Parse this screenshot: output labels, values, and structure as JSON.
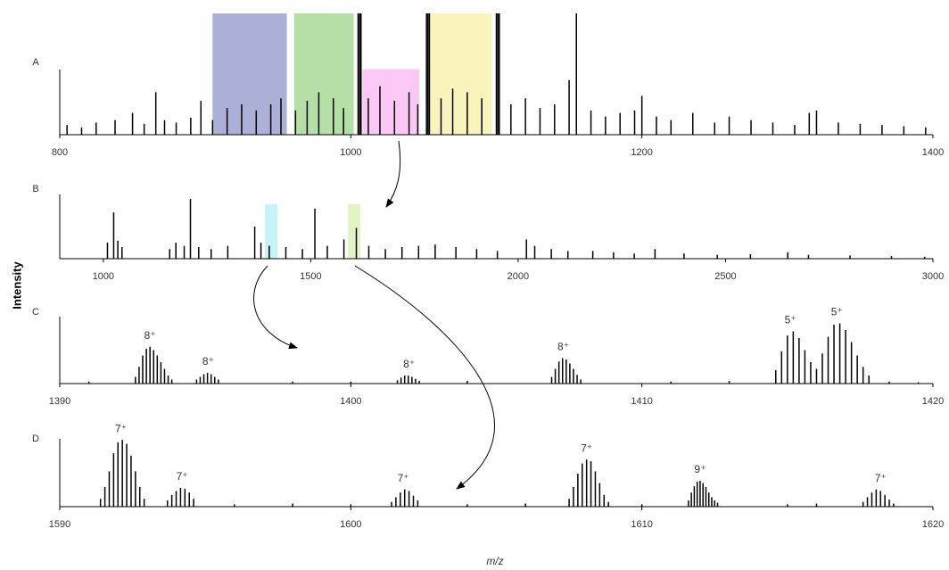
{
  "figure": {
    "ylabel": "Intensity",
    "xlabel": "m/z"
  },
  "chart_data": [
    {
      "type": "spectrum",
      "label": "A",
      "color": "#000000",
      "xlim": [
        800,
        1400
      ],
      "xticks": [
        800,
        1000,
        1200,
        1400
      ],
      "ylim": [
        0,
        100
      ],
      "x": [
        805,
        815,
        825,
        838,
        850,
        858,
        866,
        872,
        880,
        890,
        897,
        905,
        915,
        925,
        935,
        945,
        952,
        962,
        970,
        978,
        988,
        995,
        1005,
        1006,
        1007,
        1012,
        1020,
        1030,
        1040,
        1046,
        1052,
        1053,
        1054,
        1062,
        1070,
        1080,
        1090,
        1100,
        1101,
        1102,
        1110,
        1120,
        1130,
        1140,
        1150,
        1155,
        1165,
        1175,
        1185,
        1195,
        1200,
        1210,
        1220,
        1235,
        1250,
        1260,
        1275,
        1290,
        1305,
        1315,
        1320,
        1335,
        1350,
        1365,
        1380,
        1395
      ],
      "values": [
        8,
        6,
        10,
        12,
        18,
        9,
        35,
        12,
        10,
        14,
        28,
        12,
        22,
        25,
        20,
        25,
        30,
        20,
        28,
        35,
        30,
        22,
        100,
        100,
        100,
        30,
        40,
        28,
        35,
        25,
        100,
        100,
        100,
        30,
        38,
        35,
        30,
        100,
        100,
        100,
        25,
        30,
        22,
        25,
        45,
        100,
        20,
        15,
        18,
        20,
        32,
        15,
        12,
        18,
        10,
        15,
        12,
        10,
        8,
        18,
        20,
        10,
        9,
        8,
        7,
        6
      ],
      "highlights": [
        {
          "range": [
            905,
            956
          ],
          "top": 100,
          "color": "#aab0d6"
        },
        {
          "range": [
            961,
            1002
          ],
          "top": 100,
          "color": "#b4e0a8"
        },
        {
          "range": [
            1008,
            1047
          ],
          "top": 54,
          "color": "#fbc8f6"
        },
        {
          "range": [
            1054,
            1097
          ],
          "top": 100,
          "color": "#f8f4bc"
        }
      ],
      "annotations": []
    },
    {
      "type": "spectrum",
      "label": "B",
      "color": "#000000",
      "xlim": [
        895,
        3000
      ],
      "xticks": [
        1000,
        1500,
        2000,
        2500,
        3000
      ],
      "ylim": [
        0,
        100
      ],
      "x": [
        1010,
        1025,
        1035,
        1045,
        1160,
        1175,
        1195,
        1210,
        1230,
        1260,
        1300,
        1365,
        1380,
        1400,
        1440,
        1480,
        1510,
        1540,
        1580,
        1610,
        1640,
        1680,
        1720,
        1760,
        1800,
        1850,
        1900,
        1950,
        2020,
        2040,
        2080,
        2120,
        2180,
        2230,
        2280,
        2330,
        2400,
        2480,
        2560,
        2650,
        2700,
        2800,
        2900,
        2980
      ],
      "values": [
        25,
        72,
        28,
        18,
        15,
        25,
        20,
        93,
        18,
        15,
        20,
        50,
        25,
        20,
        18,
        15,
        78,
        20,
        30,
        48,
        20,
        15,
        18,
        20,
        22,
        18,
        15,
        12,
        30,
        20,
        15,
        12,
        12,
        10,
        8,
        15,
        8,
        6,
        7,
        10,
        6,
        5,
        4,
        3
      ],
      "highlights": [
        {
          "range": [
            1390,
            1420
          ],
          "top": 85,
          "color": "#c4f4f8"
        },
        {
          "range": [
            1590,
            1620
          ],
          "top": 85,
          "color": "#e2f4c4"
        }
      ],
      "annotations": []
    },
    {
      "type": "spectrum",
      "label": "C",
      "color": "#000000",
      "xlim": [
        1390,
        1420
      ],
      "xticks": [
        1390,
        1400,
        1410,
        1420
      ],
      "ylim": [
        0,
        100
      ],
      "x": [
        1391,
        1392.6,
        1392.725,
        1392.85,
        1392.975,
        1393.1,
        1393.225,
        1393.35,
        1393.475,
        1393.6,
        1393.725,
        1393.85,
        1394.7,
        1394.825,
        1394.95,
        1395.075,
        1395.2,
        1395.325,
        1395.45,
        1398,
        1400,
        1401.6,
        1401.725,
        1401.85,
        1401.975,
        1402.1,
        1402.225,
        1402.35,
        1404,
        1406.9,
        1407.025,
        1407.15,
        1407.275,
        1407.4,
        1407.525,
        1407.65,
        1407.775,
        1407.9,
        1411,
        1413,
        1414.6,
        1414.8,
        1415.0,
        1415.2,
        1415.4,
        1415.6,
        1415.8,
        1416.0,
        1416.2,
        1416.4,
        1416.6,
        1416.8,
        1417.0,
        1417.2,
        1417.4,
        1417.6,
        1417.8,
        1418.5,
        1419.5
      ],
      "values": [
        3,
        10,
        25,
        42,
        52,
        55,
        50,
        42,
        32,
        22,
        12,
        6,
        6,
        10,
        14,
        16,
        14,
        10,
        6,
        3,
        3,
        5,
        9,
        12,
        12,
        10,
        7,
        4,
        4,
        10,
        22,
        33,
        38,
        36,
        30,
        22,
        13,
        6,
        3,
        4,
        20,
        48,
        72,
        78,
        68,
        50,
        32,
        22,
        45,
        70,
        88,
        90,
        80,
        62,
        42,
        25,
        12,
        3,
        2
      ],
      "highlights": [],
      "annotations": [
        {
          "x": 1393.1,
          "y": 55,
          "label": "8⁺"
        },
        {
          "x": 1395.1,
          "y": 16,
          "label": "8⁺"
        },
        {
          "x": 1402.0,
          "y": 12,
          "label": "8⁺"
        },
        {
          "x": 1407.3,
          "y": 38,
          "label": "8⁺"
        },
        {
          "x": 1415.1,
          "y": 78,
          "label": "5⁺"
        },
        {
          "x": 1416.7,
          "y": 90,
          "label": "5⁺"
        }
      ]
    },
    {
      "type": "spectrum",
      "label": "D",
      "color": "#000000",
      "xlim": [
        1590,
        1620
      ],
      "xticks": [
        1590,
        1600,
        1610,
        1620
      ],
      "ylim": [
        0,
        100
      ],
      "x": [
        1591.4,
        1591.55,
        1591.7,
        1591.85,
        1592.0,
        1592.15,
        1592.3,
        1592.45,
        1592.6,
        1592.75,
        1592.9,
        1593.7,
        1593.85,
        1594.0,
        1594.15,
        1594.3,
        1594.45,
        1594.6,
        1596,
        1598,
        1600,
        1601.4,
        1601.55,
        1601.7,
        1601.85,
        1602.0,
        1602.15,
        1602.3,
        1604,
        1606,
        1607.5,
        1607.65,
        1607.8,
        1607.95,
        1608.1,
        1608.25,
        1608.4,
        1608.55,
        1608.7,
        1608.85,
        1610,
        1611.6,
        1611.7,
        1611.8,
        1611.9,
        1612.0,
        1612.1,
        1612.2,
        1612.3,
        1612.4,
        1612.5,
        1612.6,
        1615,
        1616,
        1617.6,
        1617.75,
        1617.9,
        1618.05,
        1618.2,
        1618.35,
        1618.5,
        1618.65
      ],
      "values": [
        10,
        25,
        45,
        68,
        82,
        85,
        80,
        65,
        45,
        25,
        10,
        8,
        15,
        20,
        24,
        23,
        18,
        10,
        3,
        4,
        3,
        6,
        12,
        18,
        22,
        20,
        14,
        8,
        3,
        4,
        10,
        25,
        42,
        55,
        60,
        58,
        45,
        30,
        15,
        6,
        3,
        8,
        18,
        26,
        32,
        33,
        30,
        25,
        18,
        12,
        8,
        5,
        3,
        4,
        6,
        12,
        18,
        22,
        20,
        15,
        9,
        4
      ],
      "highlights": [],
      "annotations": [
        {
          "x": 1592.1,
          "y": 85,
          "label": "7⁺"
        },
        {
          "x": 1594.2,
          "y": 24,
          "label": "7⁺"
        },
        {
          "x": 1601.8,
          "y": 22,
          "label": "7⁺"
        },
        {
          "x": 1608.1,
          "y": 60,
          "label": "7⁺"
        },
        {
          "x": 1612.0,
          "y": 33,
          "label": "9⁺"
        },
        {
          "x": 1618.2,
          "y": 22,
          "label": "7⁺"
        }
      ]
    }
  ]
}
